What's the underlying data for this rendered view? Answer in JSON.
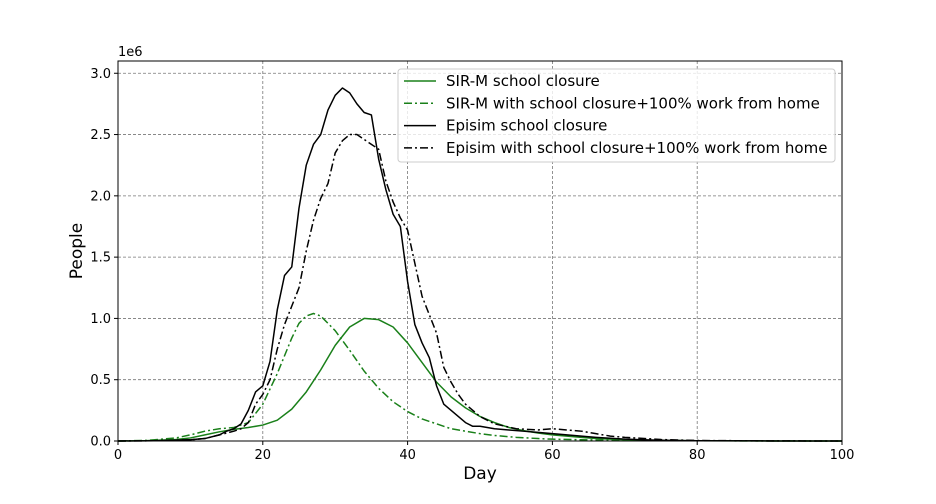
{
  "chart_data": {
    "type": "line",
    "xlabel": "Day",
    "ylabel": "People",
    "y_multiplier": "1e6",
    "xlim": [
      0,
      100
    ],
    "ylim": [
      0,
      3.1
    ],
    "xticks": [
      0,
      20,
      40,
      60,
      80,
      100
    ],
    "xtick_labels": [
      "0",
      "20",
      "40",
      "60",
      "80",
      "100"
    ],
    "yticks": [
      0,
      0.5,
      1.0,
      1.5,
      2.0,
      2.5,
      3.0
    ],
    "ytick_labels": [
      "0.0",
      "0.5",
      "1.0",
      "1.5",
      "2.0",
      "2.5",
      "3.0"
    ],
    "grid": true,
    "legend_position": "top-right",
    "series": [
      {
        "name": "SIR-M school closure",
        "color": "#1a801a",
        "dash": "solid",
        "x": [
          0,
          4,
          8,
          10,
          12,
          14,
          16,
          18,
          20,
          22,
          24,
          26,
          28,
          30,
          32,
          34,
          36,
          38,
          40,
          42,
          44,
          46,
          48,
          50,
          52,
          54,
          56,
          58,
          60,
          62,
          64,
          66,
          70,
          75,
          80,
          90,
          100
        ],
        "y": [
          0.0,
          0.003,
          0.012,
          0.025,
          0.05,
          0.075,
          0.095,
          0.11,
          0.13,
          0.17,
          0.26,
          0.4,
          0.58,
          0.78,
          0.93,
          1.0,
          0.99,
          0.93,
          0.8,
          0.64,
          0.48,
          0.36,
          0.27,
          0.2,
          0.15,
          0.11,
          0.085,
          0.065,
          0.05,
          0.04,
          0.03,
          0.02,
          0.01,
          0.004,
          0.002,
          0.0005,
          0.0
        ]
      },
      {
        "name": "SIR-M with school closure+100% work from home",
        "color": "#1a801a",
        "dash": "dashdot",
        "x": [
          0,
          4,
          8,
          10,
          12,
          14,
          16,
          18,
          20,
          22,
          24,
          25,
          26,
          27,
          28,
          30,
          32,
          34,
          36,
          38,
          40,
          42,
          44,
          46,
          48,
          50,
          52,
          55,
          58,
          60,
          64,
          70,
          80,
          100
        ],
        "y": [
          0.0,
          0.005,
          0.025,
          0.05,
          0.08,
          0.1,
          0.11,
          0.15,
          0.3,
          0.55,
          0.84,
          0.96,
          1.02,
          1.04,
          1.02,
          0.9,
          0.74,
          0.57,
          0.43,
          0.32,
          0.24,
          0.18,
          0.14,
          0.1,
          0.08,
          0.06,
          0.045,
          0.03,
          0.02,
          0.015,
          0.01,
          0.005,
          0.002,
          0.0
        ]
      },
      {
        "name": "Episim school closure",
        "color": "#000000",
        "dash": "solid",
        "x": [
          0,
          5,
          10,
          12,
          14,
          15,
          16,
          17,
          18,
          19,
          20,
          21,
          22,
          23,
          24,
          25,
          26,
          27,
          28,
          29,
          30,
          31,
          32,
          33,
          34,
          35,
          36,
          37,
          38,
          39,
          40,
          41,
          42,
          43,
          44,
          45,
          46,
          47,
          48,
          49,
          50,
          52,
          54,
          56,
          58,
          60,
          62,
          64,
          66,
          70,
          75,
          80,
          90,
          100
        ],
        "y": [
          0.0,
          0.002,
          0.01,
          0.02,
          0.05,
          0.08,
          0.1,
          0.14,
          0.25,
          0.4,
          0.45,
          0.65,
          1.07,
          1.35,
          1.42,
          1.9,
          2.25,
          2.42,
          2.5,
          2.7,
          2.82,
          2.88,
          2.84,
          2.75,
          2.68,
          2.66,
          2.3,
          2.05,
          1.85,
          1.75,
          1.3,
          0.95,
          0.8,
          0.68,
          0.45,
          0.3,
          0.25,
          0.2,
          0.15,
          0.12,
          0.12,
          0.1,
          0.09,
          0.08,
          0.07,
          0.06,
          0.05,
          0.04,
          0.03,
          0.015,
          0.006,
          0.002,
          0.0005,
          0.0
        ]
      },
      {
        "name": "Episim with school closure+100% work from home",
        "color": "#000000",
        "dash": "dashdot",
        "x": [
          0,
          5,
          10,
          12,
          14,
          16,
          17,
          18,
          19,
          20,
          21,
          22,
          23,
          24,
          25,
          26,
          27,
          28,
          29,
          30,
          31,
          32,
          33,
          34,
          35,
          36,
          37,
          38,
          39,
          40,
          41,
          42,
          43,
          44,
          45,
          46,
          47,
          48,
          50,
          52,
          55,
          58,
          60,
          62,
          64,
          66,
          68,
          70,
          75,
          80,
          90,
          100
        ],
        "y": [
          0.0,
          0.002,
          0.01,
          0.02,
          0.05,
          0.08,
          0.1,
          0.15,
          0.3,
          0.38,
          0.5,
          0.75,
          0.95,
          1.1,
          1.25,
          1.55,
          1.8,
          1.98,
          2.1,
          2.35,
          2.45,
          2.5,
          2.5,
          2.46,
          2.42,
          2.38,
          2.12,
          1.95,
          1.82,
          1.72,
          1.45,
          1.18,
          1.03,
          0.88,
          0.6,
          0.48,
          0.38,
          0.3,
          0.2,
          0.14,
          0.1,
          0.09,
          0.1,
          0.09,
          0.08,
          0.06,
          0.04,
          0.03,
          0.012,
          0.004,
          0.001,
          0.0
        ]
      }
    ]
  }
}
